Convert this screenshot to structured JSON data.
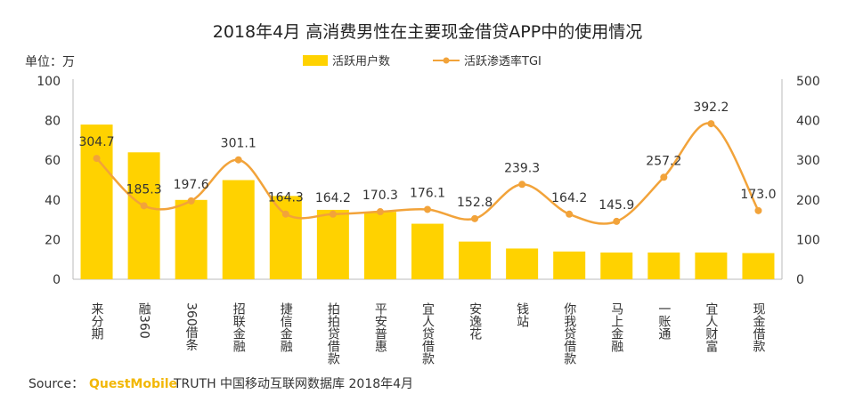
{
  "chart_data": {
    "type": "bar",
    "title": "2018年4月 高消费男性在主要现金借贷APP中的使用情况",
    "unit_label": "单位：万",
    "categories": [
      "来分期",
      "融360",
      "360借条",
      "招联金融",
      "捷信金融",
      "拍拍贷借款",
      "平安普惠",
      "宜人贷借款",
      "安逸花",
      "钱站",
      "你我贷借款",
      "马上金融",
      "一账通",
      "宜人财富",
      "现金借款"
    ],
    "series": [
      {
        "name": "活跃用户数",
        "type": "bar",
        "axis": "left",
        "values": [
          78,
          64,
          40,
          50,
          42,
          35,
          34,
          28,
          19,
          15.5,
          14,
          13.5,
          13.5,
          13.5,
          13.2
        ]
      },
      {
        "name": "活跃渗透率TGI",
        "type": "line",
        "axis": "right",
        "values": [
          304.7,
          185.3,
          197.6,
          301.1,
          164.3,
          164.2,
          170.3,
          176.1,
          152.8,
          239.3,
          164.2,
          145.9,
          257.2,
          392.2,
          173.0
        ],
        "labels": [
          "304.7",
          "185.3",
          "197.6",
          "301.1",
          "164.3",
          "164.2",
          "170.3",
          "176.1",
          "152.8",
          "239.3",
          "164.2",
          "145.9",
          "257.2",
          "392.2",
          "173.0"
        ]
      }
    ],
    "left_axis": {
      "min": 0,
      "max": 100,
      "ticks": [
        "0",
        "20",
        "40",
        "60",
        "80",
        "100"
      ]
    },
    "right_axis": {
      "min": 0,
      "max": 500,
      "ticks": [
        "0",
        "100",
        "200",
        "300",
        "400",
        "500"
      ]
    },
    "legend_position": "top-center"
  },
  "colors": {
    "bar": "#FFD200",
    "line": "#F2A33A",
    "marker": "#F2A33A",
    "axis": "#bbbbbb"
  },
  "source": {
    "prefix": "Source：",
    "brand": "QuestMobile",
    "rest": " TRUTH 中国移动互联网数据库 2018年4月"
  }
}
